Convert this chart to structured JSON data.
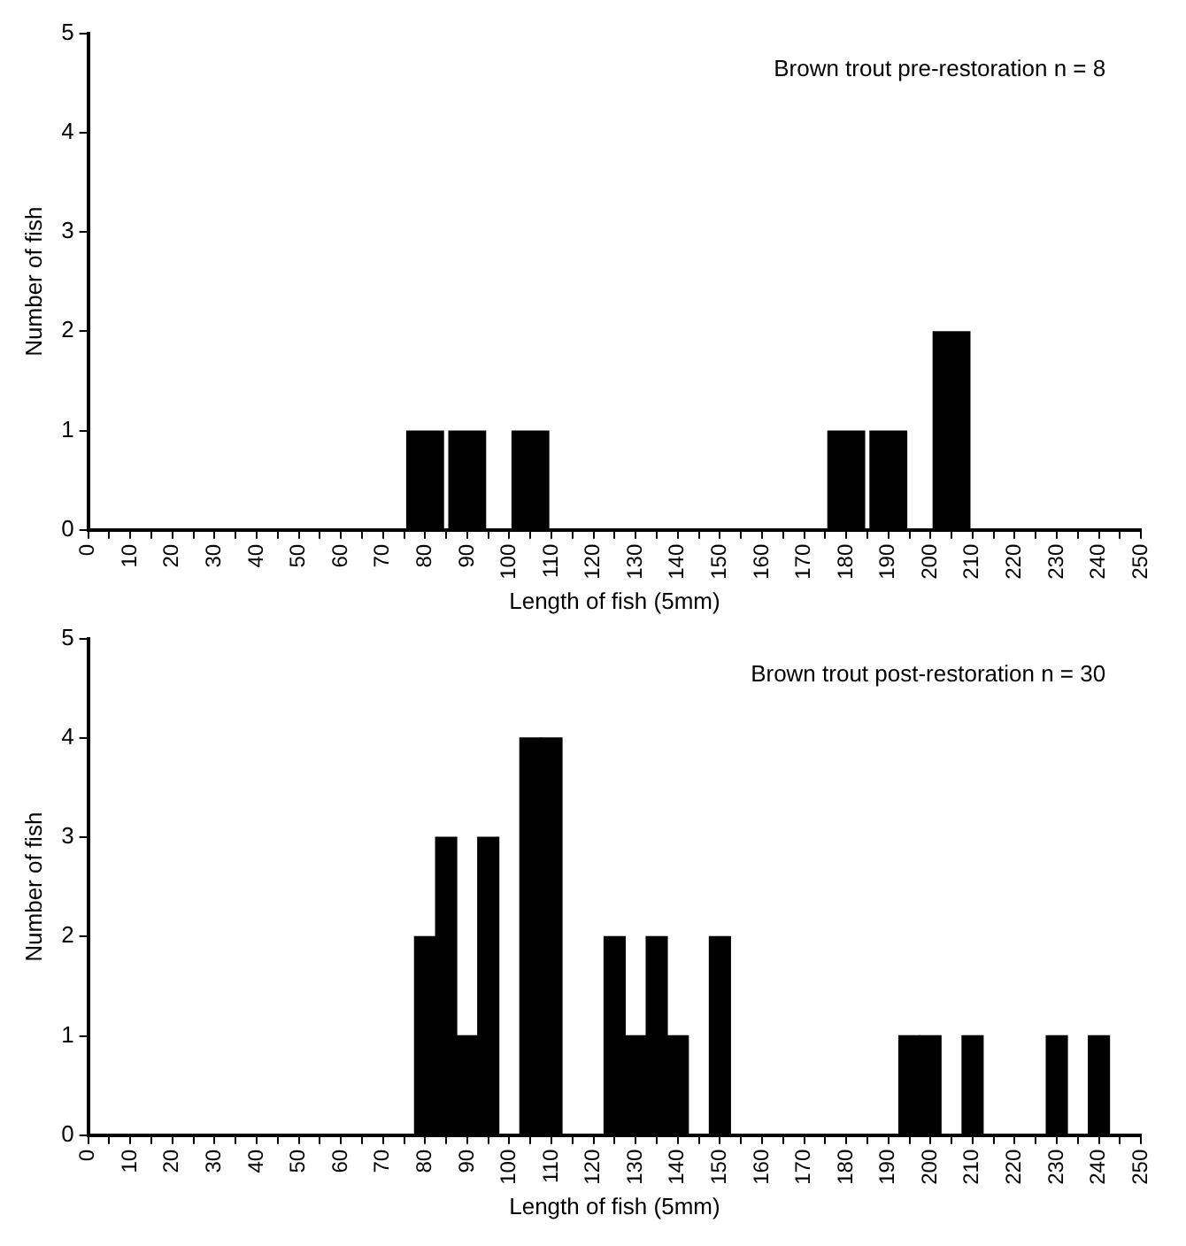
{
  "chart_data": [
    {
      "type": "bar",
      "title": "Brown trout pre-restoration n = 8",
      "xlabel": "Length of fish (5mm)",
      "ylabel": "Number of fish",
      "categories": [
        "0",
        null,
        "10",
        null,
        "20",
        null,
        "30",
        null,
        "40",
        null,
        "50",
        null,
        "60",
        null,
        "70",
        null,
        "80",
        null,
        "90",
        null,
        "100",
        null,
        "110",
        null,
        "120",
        null,
        "130",
        null,
        "140",
        null,
        "150",
        null,
        "160",
        null,
        "170",
        null,
        "180",
        null,
        "190",
        null,
        "200",
        null,
        "210",
        null,
        "220",
        null,
        "230",
        null,
        "240",
        null,
        "250"
      ],
      "values": [
        0,
        0,
        0,
        0,
        0,
        0,
        0,
        0,
        0,
        0,
        0,
        0,
        0,
        0,
        0,
        0,
        1,
        0,
        1,
        0,
        0,
        1,
        0,
        0,
        0,
        0,
        0,
        0,
        0,
        0,
        0,
        0,
        0,
        0,
        0,
        0,
        1,
        0,
        1,
        0,
        0,
        2,
        0,
        0,
        0,
        0,
        0,
        0,
        0,
        0,
        0
      ],
      "color": "#000000",
      "ylim": [
        0,
        5
      ],
      "yticks": [
        0,
        1,
        2,
        3,
        4,
        5
      ],
      "grid": false,
      "legend": false
    },
    {
      "type": "bar",
      "title": "Brown trout post-restoration n = 30",
      "xlabel": "Length of fish (5mm)",
      "ylabel": "Number of fish",
      "categories": [
        "0",
        null,
        "10",
        null,
        "20",
        null,
        "30",
        null,
        "40",
        null,
        "50",
        null,
        "60",
        null,
        "70",
        null,
        "80",
        null,
        "90",
        null,
        "100",
        null,
        "110",
        null,
        "120",
        null,
        "130",
        null,
        "140",
        null,
        "150",
        null,
        "160",
        null,
        "170",
        null,
        "180",
        null,
        "190",
        null,
        "200",
        null,
        "210",
        null,
        "220",
        null,
        "230",
        null,
        "240",
        null,
        "250"
      ],
      "values": [
        0,
        0,
        0,
        0,
        0,
        0,
        0,
        0,
        0,
        0,
        0,
        0,
        0,
        0,
        0,
        0,
        2,
        3,
        1,
        3,
        0,
        4,
        4,
        0,
        0,
        2,
        1,
        2,
        1,
        0,
        2,
        0,
        0,
        0,
        0,
        0,
        0,
        0,
        0,
        1,
        1,
        0,
        1,
        0,
        0,
        0,
        1,
        0,
        1,
        0,
        0
      ],
      "color": "#000000",
      "ylim": [
        0,
        5
      ],
      "yticks": [
        0,
        1,
        2,
        3,
        4,
        5
      ],
      "grid": false,
      "legend": false
    }
  ]
}
